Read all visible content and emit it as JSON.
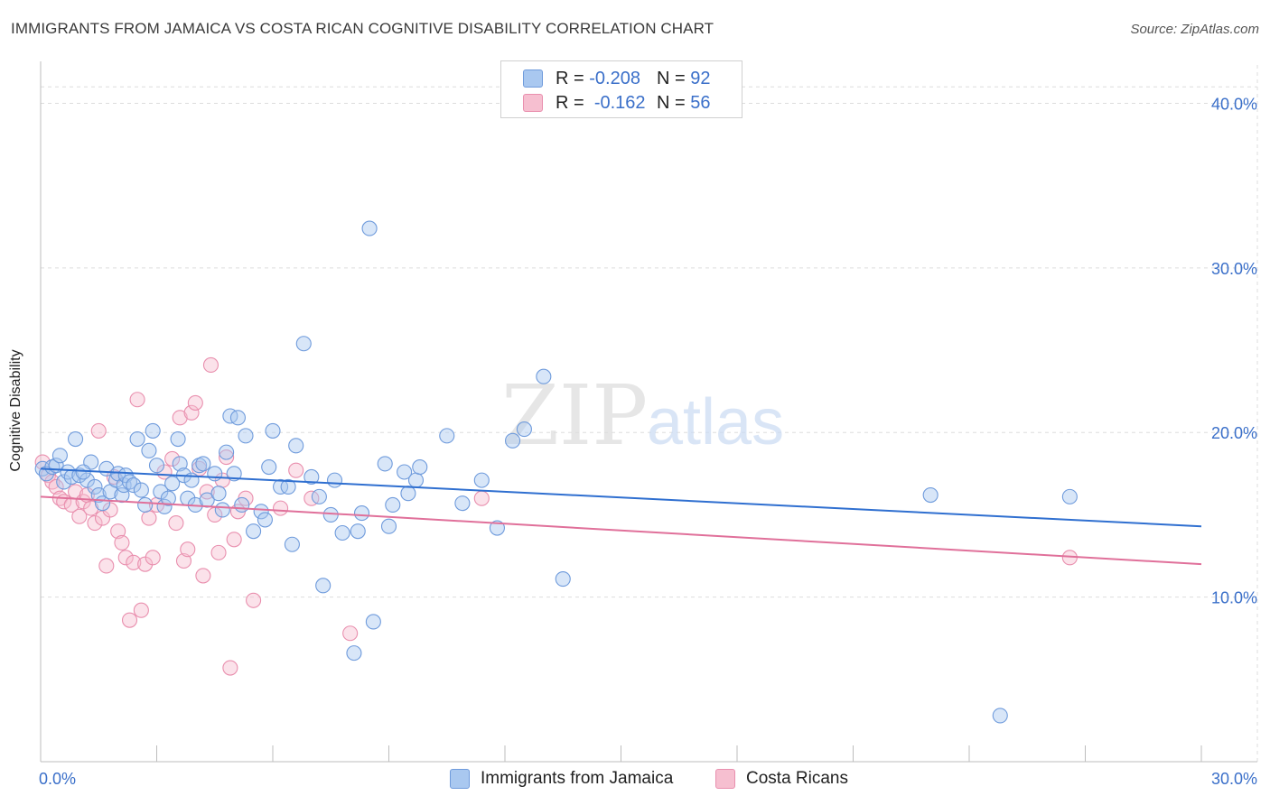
{
  "title": "IMMIGRANTS FROM JAMAICA VS COSTA RICAN COGNITIVE DISABILITY CORRELATION CHART",
  "source": "Source: ZipAtlas.com",
  "watermark": {
    "zip": "ZIP",
    "atlas": "atlas"
  },
  "legend": {
    "rows": [
      {
        "r_label": "R =",
        "r_value": "-0.208",
        "n_label": "N =",
        "n_value": "92"
      },
      {
        "r_label": "R =",
        "r_value": "-0.162",
        "n_label": "N =",
        "n_value": "56"
      }
    ]
  },
  "bottom_legend": [
    "Immigrants from Jamaica",
    "Costa Ricans"
  ],
  "colors": {
    "blue_fill": "#a9c8f0",
    "blue_stroke": "#6f9bdc",
    "blue_line": "#2f6fd0",
    "pink_fill": "#f6bfd0",
    "pink_stroke": "#e98fae",
    "pink_line": "#e0709a",
    "grid": "#dddddd",
    "tick_label": "#3a6fc9"
  },
  "chart_data": {
    "type": "scatter",
    "title": "IMMIGRANTS FROM JAMAICA VS COSTA RICAN COGNITIVE DISABILITY CORRELATION CHART",
    "xlabel": "",
    "ylabel": "Cognitive Disability",
    "xlim": [
      0,
      30
    ],
    "ylim": [
      0,
      42
    ],
    "x_tick_labels": [
      "0.0%",
      "30.0%"
    ],
    "y_ticks": [
      10,
      20,
      30,
      40
    ],
    "y_tick_labels": [
      "10.0%",
      "20.0%",
      "30.0%",
      "40.0%"
    ],
    "grid": true,
    "legend_position": "top-center",
    "series": [
      {
        "name": "Immigrants from Jamaica",
        "color": "#a9c8f0",
        "trend": {
          "x": [
            0,
            30
          ],
          "y": [
            17.8,
            14.3
          ]
        },
        "points": [
          [
            0.05,
            17.8
          ],
          [
            0.15,
            17.5
          ],
          [
            0.3,
            17.9
          ],
          [
            0.4,
            18.0
          ],
          [
            0.5,
            18.6
          ],
          [
            0.6,
            17.0
          ],
          [
            0.7,
            17.6
          ],
          [
            0.8,
            17.3
          ],
          [
            1.0,
            17.4
          ],
          [
            1.2,
            17.1
          ],
          [
            1.3,
            18.2
          ],
          [
            1.4,
            16.7
          ],
          [
            0.9,
            19.6
          ],
          [
            1.1,
            17.6
          ],
          [
            1.5,
            16.2
          ],
          [
            1.6,
            15.7
          ],
          [
            1.7,
            17.8
          ],
          [
            1.8,
            16.4
          ],
          [
            1.95,
            17.1
          ],
          [
            2.0,
            17.5
          ],
          [
            2.1,
            16.2
          ],
          [
            2.15,
            16.8
          ],
          [
            2.2,
            17.4
          ],
          [
            2.3,
            17.0
          ],
          [
            2.4,
            16.8
          ],
          [
            2.5,
            19.6
          ],
          [
            2.6,
            16.5
          ],
          [
            2.7,
            15.6
          ],
          [
            2.8,
            18.9
          ],
          [
            2.9,
            20.1
          ],
          [
            3.0,
            18.0
          ],
          [
            3.1,
            16.4
          ],
          [
            3.2,
            15.5
          ],
          [
            3.3,
            16.0
          ],
          [
            3.4,
            16.9
          ],
          [
            3.55,
            19.6
          ],
          [
            3.6,
            18.1
          ],
          [
            3.7,
            17.4
          ],
          [
            3.8,
            16.0
          ],
          [
            3.9,
            17.1
          ],
          [
            4.0,
            15.6
          ],
          [
            4.1,
            18.0
          ],
          [
            4.2,
            18.1
          ],
          [
            4.3,
            15.9
          ],
          [
            4.5,
            17.5
          ],
          [
            4.6,
            16.3
          ],
          [
            4.7,
            15.3
          ],
          [
            4.8,
            18.8
          ],
          [
            4.9,
            21.0
          ],
          [
            5.1,
            20.9
          ],
          [
            5.0,
            17.5
          ],
          [
            5.2,
            15.6
          ],
          [
            5.3,
            19.8
          ],
          [
            5.5,
            14.0
          ],
          [
            5.7,
            15.2
          ],
          [
            5.8,
            14.7
          ],
          [
            5.9,
            17.9
          ],
          [
            6.0,
            20.1
          ],
          [
            6.2,
            16.7
          ],
          [
            6.4,
            16.7
          ],
          [
            6.5,
            13.2
          ],
          [
            6.6,
            19.2
          ],
          [
            6.8,
            25.4
          ],
          [
            7.0,
            17.3
          ],
          [
            7.2,
            16.1
          ],
          [
            7.3,
            10.7
          ],
          [
            7.5,
            15.0
          ],
          [
            7.6,
            17.1
          ],
          [
            7.8,
            13.9
          ],
          [
            8.1,
            6.6
          ],
          [
            8.2,
            14.0
          ],
          [
            8.3,
            15.1
          ],
          [
            8.5,
            32.4
          ],
          [
            8.6,
            8.5
          ],
          [
            8.9,
            18.1
          ],
          [
            9.0,
            14.3
          ],
          [
            9.1,
            15.6
          ],
          [
            9.4,
            17.6
          ],
          [
            9.5,
            16.3
          ],
          [
            9.7,
            17.1
          ],
          [
            9.8,
            17.9
          ],
          [
            10.5,
            19.8
          ],
          [
            10.9,
            15.7
          ],
          [
            11.4,
            17.1
          ],
          [
            11.8,
            14.2
          ],
          [
            12.2,
            19.5
          ],
          [
            12.5,
            20.2
          ],
          [
            13.0,
            23.4
          ],
          [
            13.5,
            11.1
          ],
          [
            23.0,
            16.2
          ],
          [
            26.6,
            16.1
          ],
          [
            24.8,
            2.8
          ]
        ]
      },
      {
        "name": "Costa Ricans",
        "color": "#f6bfd0",
        "trend": {
          "x": [
            0,
            30
          ],
          "y": [
            16.1,
            12.0
          ]
        },
        "points": [
          [
            0.05,
            18.2
          ],
          [
            0.2,
            17.4
          ],
          [
            0.3,
            17.0
          ],
          [
            0.4,
            16.7
          ],
          [
            0.5,
            16.0
          ],
          [
            0.6,
            15.8
          ],
          [
            0.8,
            15.6
          ],
          [
            0.9,
            16.4
          ],
          [
            1.0,
            14.9
          ],
          [
            1.1,
            15.8
          ],
          [
            1.2,
            16.2
          ],
          [
            1.3,
            15.4
          ],
          [
            1.4,
            14.5
          ],
          [
            1.5,
            20.1
          ],
          [
            1.6,
            14.8
          ],
          [
            1.7,
            11.9
          ],
          [
            1.8,
            15.3
          ],
          [
            1.9,
            17.3
          ],
          [
            2.0,
            14.0
          ],
          [
            2.1,
            13.3
          ],
          [
            2.2,
            12.4
          ],
          [
            2.3,
            8.6
          ],
          [
            2.4,
            12.1
          ],
          [
            2.5,
            22.0
          ],
          [
            2.6,
            9.2
          ],
          [
            2.7,
            12.0
          ],
          [
            2.8,
            14.8
          ],
          [
            2.9,
            12.4
          ],
          [
            3.0,
            15.6
          ],
          [
            3.2,
            17.6
          ],
          [
            3.4,
            18.4
          ],
          [
            3.5,
            14.5
          ],
          [
            3.6,
            20.9
          ],
          [
            3.7,
            12.2
          ],
          [
            3.8,
            12.9
          ],
          [
            3.9,
            21.2
          ],
          [
            4.0,
            21.8
          ],
          [
            4.1,
            17.8
          ],
          [
            4.2,
            11.3
          ],
          [
            4.3,
            16.4
          ],
          [
            4.4,
            24.1
          ],
          [
            4.5,
            15.0
          ],
          [
            4.6,
            12.7
          ],
          [
            4.7,
            17.1
          ],
          [
            4.8,
            18.5
          ],
          [
            4.9,
            5.7
          ],
          [
            5.0,
            13.5
          ],
          [
            5.1,
            15.2
          ],
          [
            5.3,
            16.0
          ],
          [
            5.5,
            9.8
          ],
          [
            6.2,
            15.4
          ],
          [
            6.6,
            17.7
          ],
          [
            7.0,
            16.0
          ],
          [
            8.0,
            7.8
          ],
          [
            11.4,
            16.0
          ],
          [
            26.6,
            12.4
          ]
        ]
      }
    ]
  }
}
